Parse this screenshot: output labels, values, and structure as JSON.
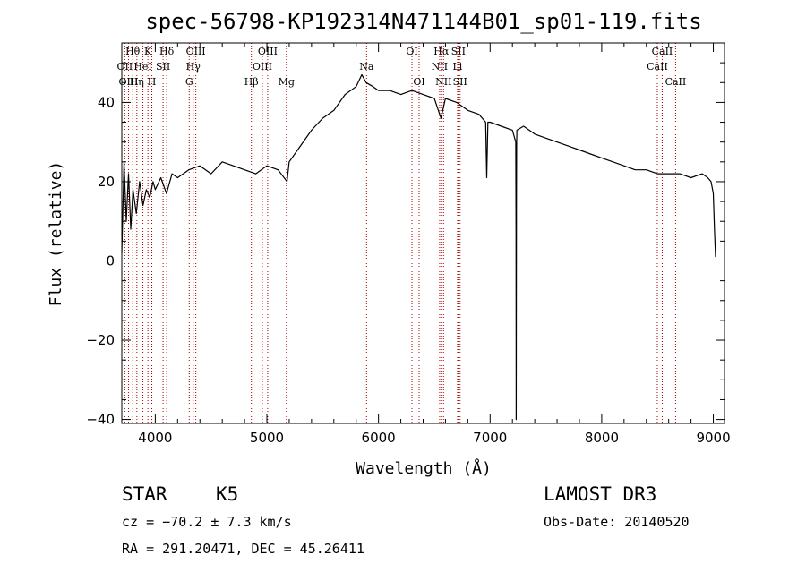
{
  "chart_data": {
    "type": "line",
    "title": "spec-56798-KP192314N471144B01_sp01-119.fits",
    "xlabel": "Wavelength (Å)",
    "ylabel": "Flux (relative)",
    "xlim": [
      3700,
      9100
    ],
    "ylim": [
      -41,
      55
    ],
    "x_ticks": [
      4000,
      5000,
      6000,
      7000,
      8000,
      9000
    ],
    "x_tick_labels": [
      "4000",
      "5000",
      "6000",
      "7000",
      "8000",
      "9000"
    ],
    "y_ticks": [
      -40,
      -20,
      0,
      20,
      40
    ],
    "y_tick_labels": [
      "−40",
      "−20",
      "0",
      "20",
      "40"
    ],
    "grid": false,
    "series": [
      {
        "name": "spectrum",
        "color": "#000000",
        "x": [
          3700,
          3720,
          3740,
          3760,
          3780,
          3800,
          3830,
          3860,
          3890,
          3920,
          3950,
          3980,
          4000,
          4050,
          4100,
          4150,
          4200,
          4300,
          4400,
          4500,
          4600,
          4700,
          4800,
          4900,
          5000,
          5100,
          5180,
          5200,
          5300,
          5400,
          5500,
          5600,
          5700,
          5800,
          5850,
          5890,
          5950,
          6000,
          6100,
          6200,
          6300,
          6400,
          6500,
          6560,
          6600,
          6700,
          6800,
          6900,
          6960,
          6970,
          6980,
          7000,
          7100,
          7200,
          7230,
          7232,
          7234,
          7236,
          7238,
          7240,
          7300,
          7400,
          7500,
          7600,
          7700,
          7800,
          7900,
          8000,
          8100,
          8200,
          8300,
          8400,
          8500,
          8600,
          8700,
          8800,
          8900,
          8950,
          8980,
          9000,
          9010,
          9020
        ],
        "y": [
          2,
          25,
          10,
          22,
          8,
          18,
          12,
          20,
          14,
          18,
          16,
          20,
          18,
          21,
          17,
          22,
          21,
          23,
          24,
          22,
          25,
          24,
          23,
          22,
          24,
          23,
          20,
          25,
          29,
          33,
          36,
          38,
          42,
          44,
          47,
          45,
          44,
          43,
          43,
          42,
          43,
          42,
          41,
          36,
          41,
          40,
          38,
          37,
          35,
          21,
          35,
          35,
          34,
          33,
          30,
          8,
          -40,
          14,
          30,
          33,
          34,
          32,
          31,
          30,
          29,
          28,
          27,
          26,
          25,
          24,
          23,
          23,
          22,
          22,
          22,
          21,
          22,
          21,
          20,
          17,
          8,
          1
        ]
      }
    ],
    "lines": [
      {
        "label": "Hθ",
        "wavelength": 3798,
        "row": 0
      },
      {
        "label": "OII",
        "wavelength": 3727,
        "row": 1
      },
      {
        "label": "OIII",
        "wavelength": 3760,
        "row": 2
      },
      {
        "label": "K",
        "wavelength": 3934,
        "row": 0
      },
      {
        "label": "HeI",
        "wavelength": 3889,
        "row": 1
      },
      {
        "label": "Hη",
        "wavelength": 3835,
        "row": 2
      },
      {
        "label": "H",
        "wavelength": 3969,
        "row": 2
      },
      {
        "label": "Hδ",
        "wavelength": 4102,
        "row": 0
      },
      {
        "label": "SII",
        "wavelength": 4070,
        "row": 1
      },
      {
        "label": "OIII",
        "wavelength": 4363,
        "row": 0
      },
      {
        "label": "Hγ",
        "wavelength": 4340,
        "row": 1
      },
      {
        "label": "G",
        "wavelength": 4304,
        "row": 2
      },
      {
        "label": "OIII",
        "wavelength": 5007,
        "row": 0
      },
      {
        "label": "OIII",
        "wavelength": 4959,
        "row": 1
      },
      {
        "label": "Hβ",
        "wavelength": 4861,
        "row": 2
      },
      {
        "label": "Mg",
        "wavelength": 5175,
        "row": 2
      },
      {
        "label": "Na",
        "wavelength": 5893,
        "row": 1
      },
      {
        "label": "OI",
        "wavelength": 6300,
        "row": 0
      },
      {
        "label": "OI",
        "wavelength": 6364,
        "row": 2
      },
      {
        "label": "Hα",
        "wavelength": 6563,
        "row": 0
      },
      {
        "label": "SII",
        "wavelength": 6716,
        "row": 0
      },
      {
        "label": "NII",
        "wavelength": 6548,
        "row": 1
      },
      {
        "label": "Li",
        "wavelength": 6708,
        "row": 1
      },
      {
        "label": "NII",
        "wavelength": 6583,
        "row": 2
      },
      {
        "label": "SII",
        "wavelength": 6731,
        "row": 2
      },
      {
        "label": "CaII",
        "wavelength": 8542,
        "row": 0
      },
      {
        "label": "CaII",
        "wavelength": 8498,
        "row": 1
      },
      {
        "label": "CaII",
        "wavelength": 8662,
        "row": 2
      }
    ],
    "line_color": "#b00000"
  },
  "info": {
    "object_class": "STAR",
    "subclass": "K5",
    "survey": "LAMOST DR3",
    "cz": "cz = −70.2 ± 7.3 km/s",
    "obs_date": "Obs-Date: 20140520",
    "coords": "RA = 291.20471, DEC =  45.26411"
  }
}
